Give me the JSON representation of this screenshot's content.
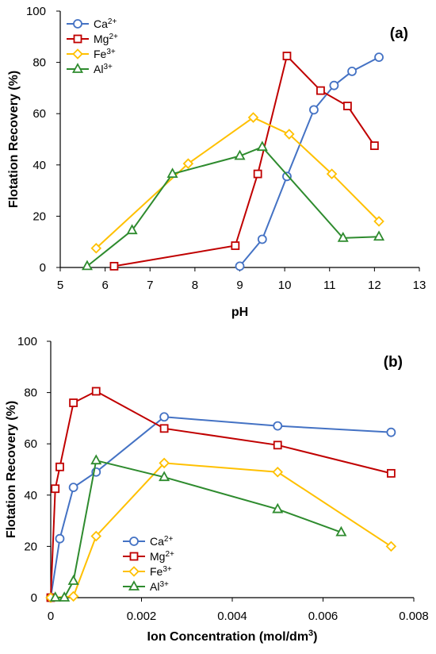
{
  "colors": {
    "Ca": "#4472C4",
    "Mg": "#C00000",
    "Fe": "#FFC000",
    "Al": "#2E8B2E"
  },
  "chart_data": [
    {
      "type": "line",
      "panel_label": "(a)",
      "xlabel": "pH",
      "ylabel": "Flotation Recovery (%)",
      "xlim": [
        5,
        13
      ],
      "ylim": [
        0,
        100
      ],
      "xticks": [
        "5",
        "6",
        "7",
        "8",
        "9",
        "10",
        "11",
        "12",
        "13"
      ],
      "yticks": [
        "0",
        "20",
        "40",
        "60",
        "80",
        "100"
      ],
      "legend_position": "top-left",
      "series": [
        {
          "name": "Ca",
          "sup": "2+",
          "color_key": "Ca",
          "marker": "circle",
          "x": [
            9.0,
            9.5,
            10.05,
            10.65,
            11.1,
            11.5,
            12.1
          ],
          "y": [
            0.5,
            11,
            35.5,
            61.5,
            71,
            76.5,
            82
          ]
        },
        {
          "name": "Mg",
          "sup": "2+",
          "color_key": "Mg",
          "marker": "square",
          "x": [
            6.2,
            8.9,
            9.4,
            10.05,
            10.8,
            11.4,
            12.0
          ],
          "y": [
            0.5,
            8.5,
            36.5,
            82.5,
            69,
            63,
            47.5
          ]
        },
        {
          "name": "Fe",
          "sup": "3+",
          "color_key": "Fe",
          "marker": "diamond",
          "x": [
            5.8,
            7.85,
            9.3,
            10.1,
            11.05,
            12.1
          ],
          "y": [
            7.5,
            40.5,
            58.5,
            52,
            36.5,
            18
          ]
        },
        {
          "name": "Al",
          "sup": "3+",
          "color_key": "Al",
          "marker": "triangle",
          "x": [
            5.6,
            6.6,
            7.5,
            9.0,
            9.5,
            11.3,
            12.1
          ],
          "y": [
            0.5,
            14.5,
            36.5,
            43.5,
            47,
            11.5,
            12
          ]
        }
      ]
    },
    {
      "type": "line",
      "panel_label": "(b)",
      "xlabel": "Ion Concentration (mol/dm",
      "xlabel_sup": "3",
      "xlabel_end": ")",
      "ylabel": "Flotation Recovery (%)",
      "xlim": [
        0,
        0.008
      ],
      "ylim": [
        0,
        100
      ],
      "xticks": [
        "0",
        "0.002",
        "0.004",
        "0.006",
        "0.008"
      ],
      "yticks": [
        "0",
        "20",
        "40",
        "60",
        "80",
        "100"
      ],
      "legend_position": "bottom-left",
      "series": [
        {
          "name": "Ca",
          "sup": "2+",
          "color_key": "Ca",
          "marker": "circle",
          "x": [
            0,
            0.0002,
            0.0005,
            0.001,
            0.0025,
            0.005,
            0.0075
          ],
          "y": [
            0,
            23,
            43,
            49,
            70.5,
            67,
            64.5
          ]
        },
        {
          "name": "Mg",
          "sup": "2+",
          "color_key": "Mg",
          "marker": "square",
          "x": [
            0,
            0.0001,
            0.0002,
            0.0005,
            0.001,
            0.0025,
            0.005,
            0.0075
          ],
          "y": [
            0,
            42.5,
            51,
            76,
            80.5,
            66,
            59.5,
            48.5
          ]
        },
        {
          "name": "Fe",
          "sup": "3+",
          "color_key": "Fe",
          "marker": "diamond",
          "x": [
            0,
            0.0005,
            0.001,
            0.0025,
            0.005,
            0.0075
          ],
          "y": [
            0,
            0.5,
            24,
            52.5,
            49,
            20
          ]
        },
        {
          "name": "Al",
          "sup": "3+",
          "color_key": "Al",
          "marker": "triangle",
          "x": [
            0.0001,
            0.0003,
            0.0005,
            0.001,
            0.0025,
            0.005,
            0.0064
          ],
          "y": [
            0,
            0,
            6.5,
            53.5,
            47,
            34.5,
            25.5
          ]
        }
      ]
    }
  ]
}
